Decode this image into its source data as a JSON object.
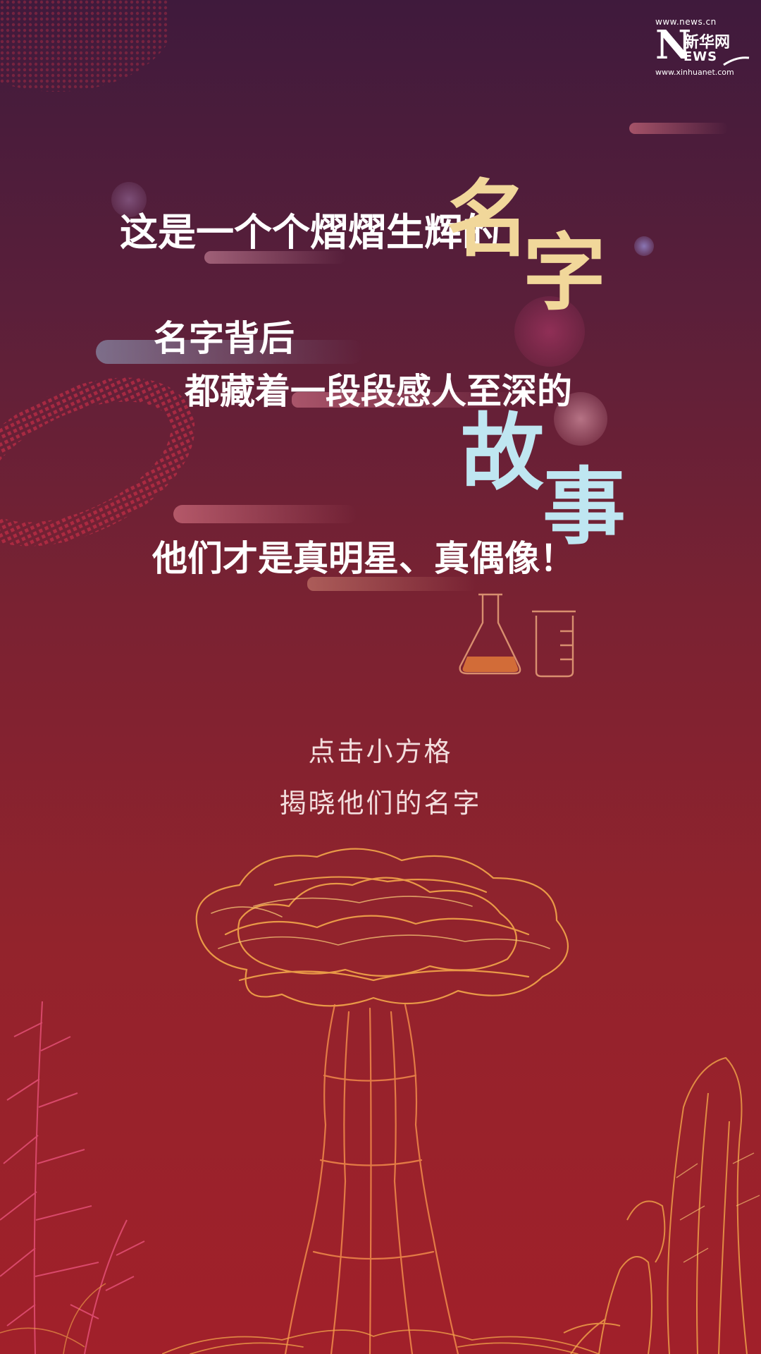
{
  "logo": {
    "url_top": "www.news.cn",
    "letter": "N",
    "name_cn": "新华网",
    "letters": "EWS",
    "url_bottom": "www.xinhuanet.com"
  },
  "headline": {
    "line1": "这是一个个熠熠生辉的",
    "big1_char1": "名",
    "big1_char2": "字",
    "line2": "名字背后",
    "line3": "都藏着一段段感人至深的",
    "big2_char1": "故",
    "big2_char2": "事",
    "line4": "他们才是真明星、真偶像！"
  },
  "instructions": {
    "line1": "点击小方格",
    "line2": "揭晓他们的名字"
  },
  "colors": {
    "title_gold": "#f1d79a",
    "title_cyan": "#bfe6f1",
    "sketch_orange": "#f3a64a",
    "sketch_pink": "#e8527a"
  }
}
